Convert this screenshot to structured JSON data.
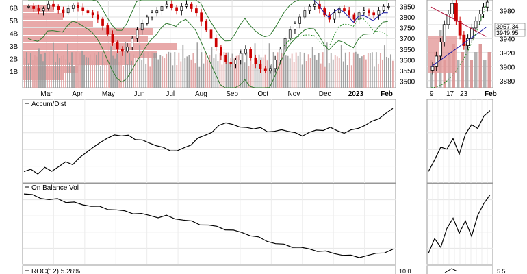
{
  "chart_data": [
    {
      "panel": "price-main",
      "type": "candlestick",
      "x_ticks": [
        "Mar",
        "Apr",
        "May",
        "Jun",
        "Jul",
        "Aug",
        "Sep",
        "Oct",
        "Nov",
        "Dec",
        "2023",
        "Feb"
      ],
      "y_ticks": [
        3500,
        3550,
        3600,
        3650,
        3700,
        3750,
        3800,
        3850
      ],
      "volume_ticks": [
        "1B",
        "2B",
        "3B",
        "4B",
        "5B",
        "6B"
      ],
      "ylim": [
        3470,
        3880
      ],
      "close": [
        3850,
        3840,
        3830,
        3840,
        3860,
        3850,
        3835,
        3820,
        3840,
        3855,
        3845,
        3830,
        3820,
        3810,
        3790,
        3760,
        3720,
        3680,
        3650,
        3640,
        3660,
        3700,
        3740,
        3770,
        3800,
        3820,
        3830,
        3850,
        3860,
        3845,
        3830,
        3850,
        3860,
        3840,
        3820,
        3780,
        3740,
        3700,
        3660,
        3620,
        3590,
        3580,
        3600,
        3630,
        3650,
        3610,
        3580,
        3560,
        3550,
        3560,
        3600,
        3650,
        3700,
        3740,
        3770,
        3800,
        3830,
        3850,
        3860,
        3840,
        3810,
        3790,
        3820,
        3840,
        3830,
        3810,
        3790,
        3820,
        3830,
        3820,
        3810,
        3830,
        3850,
        3850
      ]
    },
    {
      "panel": "price-inset",
      "type": "candlestick",
      "x_ticks": [
        "9",
        "17",
        "23",
        "Feb"
      ],
      "y_ticks": [
        3880,
        3900,
        3920,
        3940,
        3960,
        3980
      ],
      "price_labels": [
        "3957.34",
        "3949.95"
      ],
      "ylim": [
        3870,
        3995
      ],
      "close": [
        3900,
        3915,
        3935,
        3960,
        3975,
        3990,
        3965,
        3945,
        3930,
        3940,
        3955,
        3965,
        3975,
        3985,
        3992
      ]
    },
    {
      "panel": "accum-dist",
      "type": "line",
      "label": "Accum/Dist",
      "values": [
        0.1,
        0.12,
        0.08,
        0.15,
        0.1,
        0.18,
        0.22,
        0.2,
        0.3,
        0.35,
        0.45,
        0.5,
        0.55,
        0.62,
        0.58,
        0.6,
        0.55,
        0.52,
        0.5,
        0.46,
        0.42,
        0.4,
        0.38,
        0.42,
        0.48,
        0.55,
        0.6,
        0.65,
        0.72,
        0.78,
        0.75,
        0.7,
        0.72,
        0.68,
        0.7,
        0.66,
        0.64,
        0.68,
        0.66,
        0.62,
        0.6,
        0.64,
        0.66,
        0.68,
        0.7,
        0.66,
        0.64,
        0.66,
        0.7,
        0.74,
        0.78,
        0.84,
        0.9,
        0.96
      ],
      "inset_values": [
        0.1,
        0.25,
        0.45,
        0.4,
        0.55,
        0.35,
        0.6,
        0.75,
        0.7,
        0.85,
        0.95
      ]
    },
    {
      "panel": "on-balance-vol",
      "type": "line",
      "label": "On Balance Vol",
      "values": [
        0.95,
        0.93,
        0.9,
        0.86,
        0.88,
        0.84,
        0.82,
        0.8,
        0.78,
        0.76,
        0.74,
        0.72,
        0.7,
        0.68,
        0.66,
        0.64,
        0.62,
        0.63,
        0.6,
        0.58,
        0.55,
        0.52,
        0.5,
        0.48,
        0.45,
        0.42,
        0.4,
        0.36,
        0.32,
        0.28,
        0.24,
        0.22,
        0.2,
        0.18,
        0.16,
        0.14,
        0.12,
        0.1,
        0.08,
        0.06,
        0.05,
        0.07,
        0.09,
        0.12,
        0.15
      ],
      "inset_values": [
        0.1,
        0.3,
        0.2,
        0.45,
        0.6,
        0.4,
        0.55,
        0.35,
        0.65,
        0.8,
        0.95
      ]
    },
    {
      "panel": "roc",
      "type": "line",
      "label": "ROC(12) 5.28%",
      "y_ticks": [
        "10.0"
      ],
      "inset_y_ticks": [
        "5.5"
      ]
    }
  ],
  "colors": {
    "up_candle": "#000000",
    "down_candle": "#cc0000",
    "volume_bar": "#999999",
    "volume_profile": "#e49a9a",
    "bollinger": "#2f7a2f",
    "ma_blue": "#1a1aa6",
    "ma_red": "#b3143c",
    "sar_green": "#1f8a1f"
  }
}
